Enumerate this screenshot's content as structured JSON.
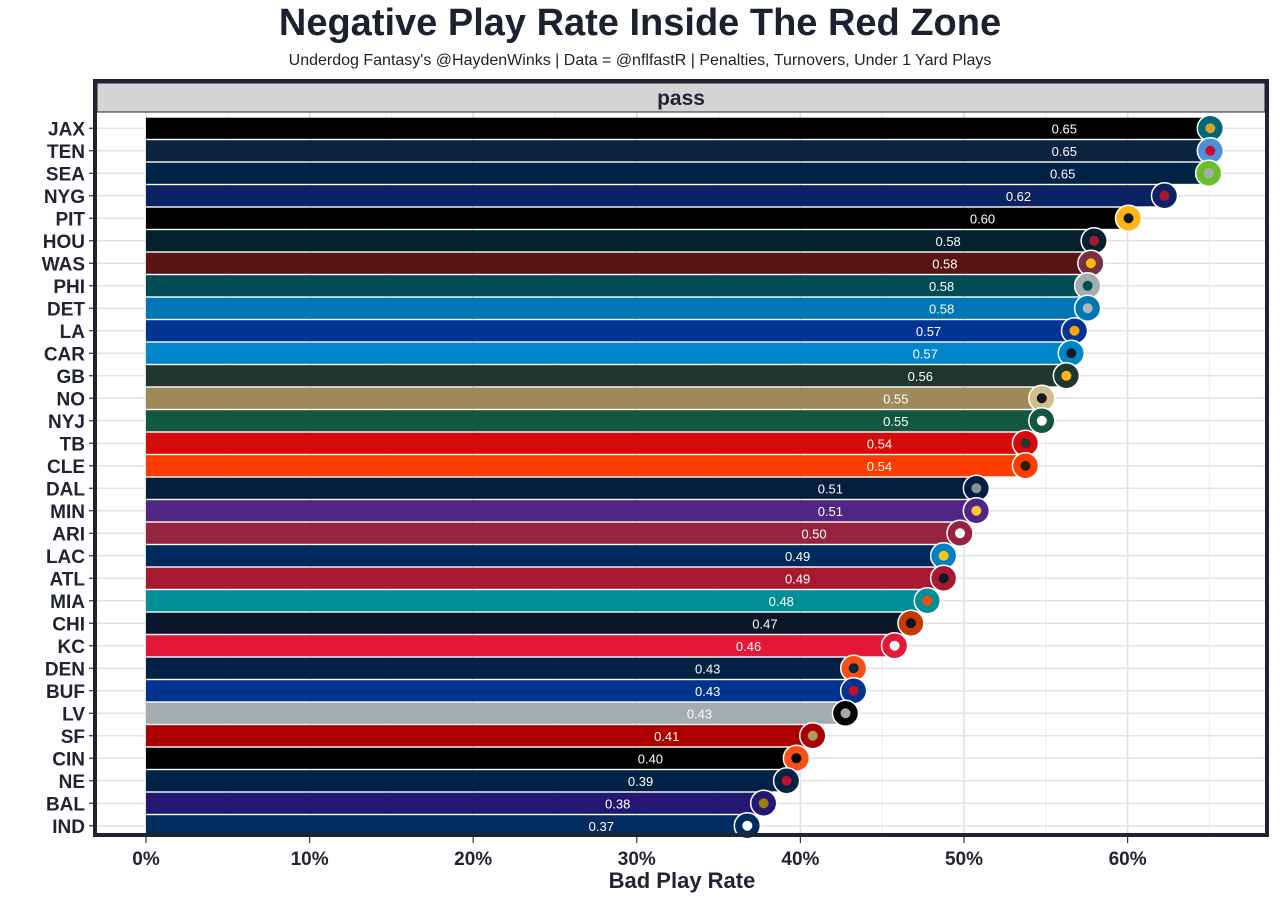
{
  "chart_data": {
    "type": "bar",
    "orientation": "horizontal",
    "title": "Negative Play Rate Inside The Red Zone",
    "subtitle": "Underdog Fantasy's @HaydenWinks | Data = @nflfastR | Penalties, Turnovers, Under 1 Yard Plays",
    "facet_label": "pass",
    "xlabel": "Bad Play Rate",
    "ylabel": "",
    "xlim": [
      0,
      0.69
    ],
    "x_ticks": [
      0,
      0.1,
      0.2,
      0.3,
      0.4,
      0.5,
      0.6
    ],
    "x_tick_labels": [
      "0%",
      "10%",
      "20%",
      "30%",
      "40%",
      "50%",
      "60%"
    ],
    "grid": true,
    "legend": "none",
    "categories": [
      "JAX",
      "TEN",
      "SEA",
      "NYG",
      "PIT",
      "HOU",
      "WAS",
      "PHI",
      "DET",
      "LA",
      "CAR",
      "GB",
      "NO",
      "NYJ",
      "TB",
      "CLE",
      "DAL",
      "MIN",
      "ARI",
      "LAC",
      "ATL",
      "MIA",
      "CHI",
      "KC",
      "DEN",
      "BUF",
      "LV",
      "SF",
      "CIN",
      "NE",
      "BAL",
      "IND"
    ],
    "values": [
      0.653,
      0.653,
      0.652,
      0.625,
      0.603,
      0.582,
      0.58,
      0.578,
      0.578,
      0.57,
      0.568,
      0.565,
      0.55,
      0.55,
      0.54,
      0.54,
      0.51,
      0.51,
      0.5,
      0.49,
      0.49,
      0.48,
      0.47,
      0.46,
      0.435,
      0.435,
      0.43,
      0.41,
      0.4,
      0.394,
      0.38,
      0.37
    ],
    "value_labels": [
      "0.65",
      "0.65",
      "0.65",
      "0.62",
      "0.60",
      "0.58",
      "0.58",
      "0.58",
      "0.58",
      "0.57",
      "0.57",
      "0.56",
      "0.55",
      "0.55",
      "0.54",
      "0.54",
      "0.51",
      "0.51",
      "0.50",
      "0.49",
      "0.49",
      "0.48",
      "0.47",
      "0.46",
      "0.43",
      "0.43",
      "0.43",
      "0.41",
      "0.40",
      "0.39",
      "0.38",
      "0.37"
    ],
    "colors": [
      "#000000",
      "#0c2340",
      "#002244",
      "#0b2265",
      "#000000",
      "#03202f",
      "#5a1414",
      "#004c54",
      "#0076b6",
      "#003594",
      "#0085ca",
      "#203731",
      "#9f8958",
      "#125740",
      "#d50a0a",
      "#ff3c00",
      "#041e42",
      "#4f2683",
      "#97233f",
      "#002a5e",
      "#a71930",
      "#008e97",
      "#0b162a",
      "#e31837",
      "#002244",
      "#00338d",
      "#a5acaf",
      "#aa0000",
      "#000000",
      "#002244",
      "#241773",
      "#002c5f"
    ],
    "logo_colors": [
      [
        "#006778",
        "#d7a22a"
      ],
      [
        "#4b92db",
        "#c60c30"
      ],
      [
        "#69be28",
        "#a5acaf"
      ],
      [
        "#0b2265",
        "#a71930"
      ],
      [
        "#ffb612",
        "#101820"
      ],
      [
        "#03202f",
        "#a71930"
      ],
      [
        "#773141",
        "#ffb612"
      ],
      [
        "#a5acaf",
        "#004c54"
      ],
      [
        "#0076b6",
        "#b0b7bc"
      ],
      [
        "#003594",
        "#ffa300"
      ],
      [
        "#0085ca",
        "#101820"
      ],
      [
        "#203731",
        "#ffb612"
      ],
      [
        "#d3bc8d",
        "#101820"
      ],
      [
        "#125740",
        "#ffffff"
      ],
      [
        "#d50a0a",
        "#34302b"
      ],
      [
        "#ff3c00",
        "#311d00"
      ],
      [
        "#041e42",
        "#869397"
      ],
      [
        "#4f2683",
        "#ffc62f"
      ],
      [
        "#97233f",
        "#ffffff"
      ],
      [
        "#0080c6",
        "#ffc20e"
      ],
      [
        "#a71930",
        "#101820"
      ],
      [
        "#008e97",
        "#fc4c02"
      ],
      [
        "#c83803",
        "#0b162a"
      ],
      [
        "#e31837",
        "#ffffff"
      ],
      [
        "#fb4f14",
        "#002244"
      ],
      [
        "#00338d",
        "#c60c30"
      ],
      [
        "#000000",
        "#a5acaf"
      ],
      [
        "#aa0000",
        "#b3995d"
      ],
      [
        "#fb4f14",
        "#000000"
      ],
      [
        "#002244",
        "#c60c30"
      ],
      [
        "#241773",
        "#9e7c0c"
      ],
      [
        "#002c5f",
        "#ffffff"
      ]
    ]
  }
}
